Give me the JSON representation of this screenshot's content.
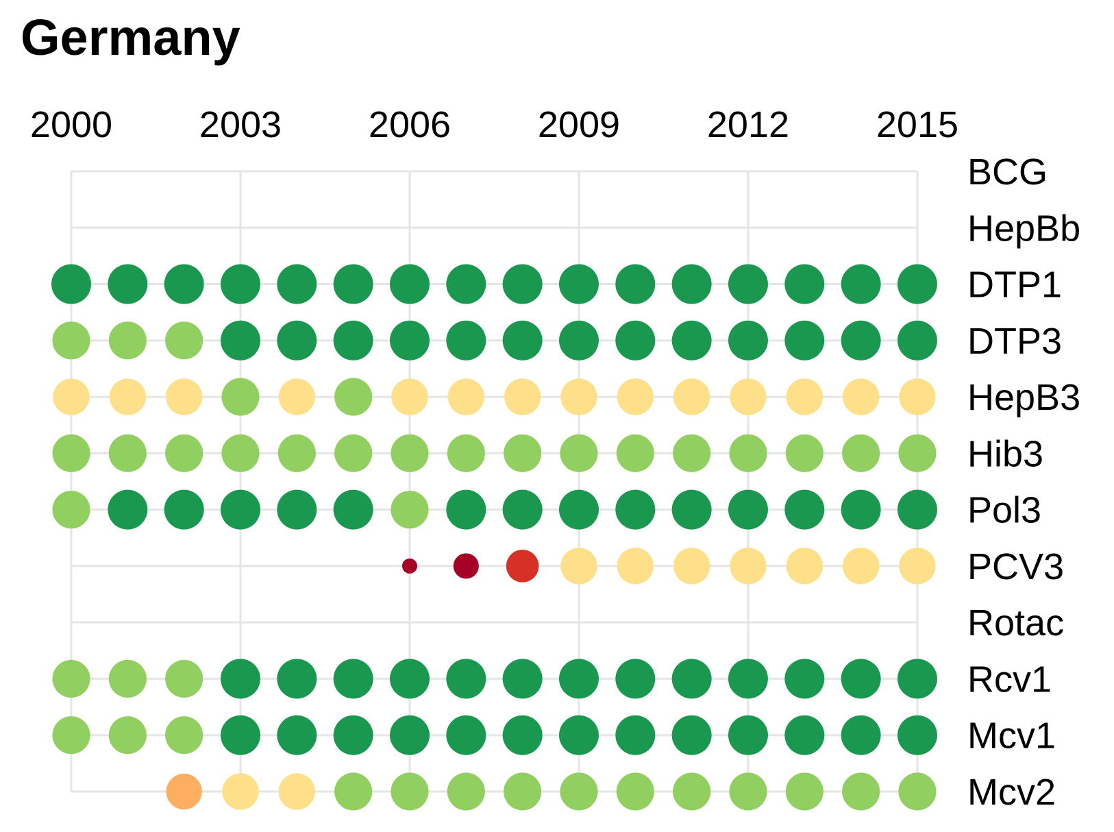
{
  "chart_data": {
    "type": "scatter",
    "title": "Germany",
    "x": [
      2000,
      2001,
      2002,
      2003,
      2004,
      2005,
      2006,
      2007,
      2008,
      2009,
      2010,
      2011,
      2012,
      2013,
      2014,
      2015
    ],
    "x_tick_labels": [
      "2000",
      "2003",
      "2006",
      "2009",
      "2012",
      "2015"
    ],
    "x_tick_values": [
      2000,
      2003,
      2006,
      2009,
      2012,
      2015
    ],
    "rows": [
      "BCG",
      "HepBb",
      "DTP1",
      "DTP3",
      "HepB3",
      "Hib3",
      "Pol3",
      "PCV3",
      "Rotac",
      "Rcv1",
      "Mcv1",
      "Mcv2"
    ],
    "row_label_position": "right",
    "x_label_position": "top",
    "grid": true,
    "colors": {
      "A": "#1a9850",
      "B": "#91cf60",
      "C": "#fee08b",
      "D": "#fdae61",
      "E": "#d73027",
      "F": "#a50026",
      "grid": "#e5e5e5"
    },
    "series": [
      {
        "row": "BCG",
        "points": []
      },
      {
        "row": "HepBb",
        "points": []
      },
      {
        "row": "DTP1",
        "points": [
          {
            "x": 2000,
            "c": "A",
            "s": 1
          },
          {
            "x": 2001,
            "c": "A",
            "s": 1
          },
          {
            "x": 2002,
            "c": "A",
            "s": 1
          },
          {
            "x": 2003,
            "c": "A",
            "s": 1
          },
          {
            "x": 2004,
            "c": "A",
            "s": 1
          },
          {
            "x": 2005,
            "c": "A",
            "s": 1
          },
          {
            "x": 2006,
            "c": "A",
            "s": 1
          },
          {
            "x": 2007,
            "c": "A",
            "s": 1
          },
          {
            "x": 2008,
            "c": "A",
            "s": 1
          },
          {
            "x": 2009,
            "c": "A",
            "s": 1
          },
          {
            "x": 2010,
            "c": "A",
            "s": 1
          },
          {
            "x": 2011,
            "c": "A",
            "s": 1
          },
          {
            "x": 2012,
            "c": "A",
            "s": 1
          },
          {
            "x": 2013,
            "c": "A",
            "s": 1
          },
          {
            "x": 2014,
            "c": "A",
            "s": 1
          },
          {
            "x": 2015,
            "c": "A",
            "s": 1
          }
        ]
      },
      {
        "row": "DTP3",
        "points": [
          {
            "x": 2000,
            "c": "B",
            "s": 0.95
          },
          {
            "x": 2001,
            "c": "B",
            "s": 0.95
          },
          {
            "x": 2002,
            "c": "B",
            "s": 0.95
          },
          {
            "x": 2003,
            "c": "A",
            "s": 1
          },
          {
            "x": 2004,
            "c": "A",
            "s": 1
          },
          {
            "x": 2005,
            "c": "A",
            "s": 1
          },
          {
            "x": 2006,
            "c": "A",
            "s": 1
          },
          {
            "x": 2007,
            "c": "A",
            "s": 1
          },
          {
            "x": 2008,
            "c": "A",
            "s": 1
          },
          {
            "x": 2009,
            "c": "A",
            "s": 1
          },
          {
            "x": 2010,
            "c": "A",
            "s": 1
          },
          {
            "x": 2011,
            "c": "A",
            "s": 1
          },
          {
            "x": 2012,
            "c": "A",
            "s": 1
          },
          {
            "x": 2013,
            "c": "A",
            "s": 1
          },
          {
            "x": 2014,
            "c": "A",
            "s": 1
          },
          {
            "x": 2015,
            "c": "A",
            "s": 1
          }
        ]
      },
      {
        "row": "HepB3",
        "points": [
          {
            "x": 2000,
            "c": "C",
            "s": 0.92
          },
          {
            "x": 2001,
            "c": "C",
            "s": 0.92
          },
          {
            "x": 2002,
            "c": "C",
            "s": 0.92
          },
          {
            "x": 2003,
            "c": "B",
            "s": 0.95
          },
          {
            "x": 2004,
            "c": "C",
            "s": 0.92
          },
          {
            "x": 2005,
            "c": "B",
            "s": 0.95
          },
          {
            "x": 2006,
            "c": "C",
            "s": 0.92
          },
          {
            "x": 2007,
            "c": "C",
            "s": 0.92
          },
          {
            "x": 2008,
            "c": "C",
            "s": 0.92
          },
          {
            "x": 2009,
            "c": "C",
            "s": 0.92
          },
          {
            "x": 2010,
            "c": "C",
            "s": 0.92
          },
          {
            "x": 2011,
            "c": "C",
            "s": 0.92
          },
          {
            "x": 2012,
            "c": "C",
            "s": 0.92
          },
          {
            "x": 2013,
            "c": "C",
            "s": 0.92
          },
          {
            "x": 2014,
            "c": "C",
            "s": 0.92
          },
          {
            "x": 2015,
            "c": "C",
            "s": 0.92
          }
        ]
      },
      {
        "row": "Hib3",
        "points": [
          {
            "x": 2000,
            "c": "B",
            "s": 0.95
          },
          {
            "x": 2001,
            "c": "B",
            "s": 0.95
          },
          {
            "x": 2002,
            "c": "B",
            "s": 0.95
          },
          {
            "x": 2003,
            "c": "B",
            "s": 0.95
          },
          {
            "x": 2004,
            "c": "B",
            "s": 0.95
          },
          {
            "x": 2005,
            "c": "B",
            "s": 0.95
          },
          {
            "x": 2006,
            "c": "B",
            "s": 0.95
          },
          {
            "x": 2007,
            "c": "B",
            "s": 0.95
          },
          {
            "x": 2008,
            "c": "B",
            "s": 0.95
          },
          {
            "x": 2009,
            "c": "B",
            "s": 0.95
          },
          {
            "x": 2010,
            "c": "B",
            "s": 0.95
          },
          {
            "x": 2011,
            "c": "B",
            "s": 0.95
          },
          {
            "x": 2012,
            "c": "B",
            "s": 0.95
          },
          {
            "x": 2013,
            "c": "B",
            "s": 0.95
          },
          {
            "x": 2014,
            "c": "B",
            "s": 0.95
          },
          {
            "x": 2015,
            "c": "B",
            "s": 0.95
          }
        ]
      },
      {
        "row": "Pol3",
        "points": [
          {
            "x": 2000,
            "c": "B",
            "s": 0.95
          },
          {
            "x": 2001,
            "c": "A",
            "s": 1
          },
          {
            "x": 2002,
            "c": "A",
            "s": 1
          },
          {
            "x": 2003,
            "c": "A",
            "s": 1
          },
          {
            "x": 2004,
            "c": "A",
            "s": 1
          },
          {
            "x": 2005,
            "c": "A",
            "s": 1
          },
          {
            "x": 2006,
            "c": "B",
            "s": 0.95
          },
          {
            "x": 2007,
            "c": "A",
            "s": 1
          },
          {
            "x": 2008,
            "c": "A",
            "s": 1
          },
          {
            "x": 2009,
            "c": "A",
            "s": 1
          },
          {
            "x": 2010,
            "c": "A",
            "s": 1
          },
          {
            "x": 2011,
            "c": "A",
            "s": 1
          },
          {
            "x": 2012,
            "c": "A",
            "s": 1
          },
          {
            "x": 2013,
            "c": "A",
            "s": 1
          },
          {
            "x": 2014,
            "c": "A",
            "s": 1
          },
          {
            "x": 2015,
            "c": "A",
            "s": 1
          }
        ]
      },
      {
        "row": "PCV3",
        "points": [
          {
            "x": 2006,
            "c": "F",
            "s": 0.38
          },
          {
            "x": 2007,
            "c": "F",
            "s": 0.64
          },
          {
            "x": 2008,
            "c": "E",
            "s": 0.82
          },
          {
            "x": 2009,
            "c": "C",
            "s": 0.92
          },
          {
            "x": 2010,
            "c": "C",
            "s": 0.92
          },
          {
            "x": 2011,
            "c": "C",
            "s": 0.92
          },
          {
            "x": 2012,
            "c": "C",
            "s": 0.92
          },
          {
            "x": 2013,
            "c": "C",
            "s": 0.92
          },
          {
            "x": 2014,
            "c": "C",
            "s": 0.92
          },
          {
            "x": 2015,
            "c": "C",
            "s": 0.92
          }
        ]
      },
      {
        "row": "Rotac",
        "points": []
      },
      {
        "row": "Rcv1",
        "points": [
          {
            "x": 2000,
            "c": "B",
            "s": 0.95
          },
          {
            "x": 2001,
            "c": "B",
            "s": 0.95
          },
          {
            "x": 2002,
            "c": "B",
            "s": 0.95
          },
          {
            "x": 2003,
            "c": "A",
            "s": 1
          },
          {
            "x": 2004,
            "c": "A",
            "s": 1
          },
          {
            "x": 2005,
            "c": "A",
            "s": 1
          },
          {
            "x": 2006,
            "c": "A",
            "s": 1
          },
          {
            "x": 2007,
            "c": "A",
            "s": 1
          },
          {
            "x": 2008,
            "c": "A",
            "s": 1
          },
          {
            "x": 2009,
            "c": "A",
            "s": 1
          },
          {
            "x": 2010,
            "c": "A",
            "s": 1
          },
          {
            "x": 2011,
            "c": "A",
            "s": 1
          },
          {
            "x": 2012,
            "c": "A",
            "s": 1
          },
          {
            "x": 2013,
            "c": "A",
            "s": 1
          },
          {
            "x": 2014,
            "c": "A",
            "s": 1
          },
          {
            "x": 2015,
            "c": "A",
            "s": 1
          }
        ]
      },
      {
        "row": "Mcv1",
        "points": [
          {
            "x": 2000,
            "c": "B",
            "s": 0.95
          },
          {
            "x": 2001,
            "c": "B",
            "s": 0.95
          },
          {
            "x": 2002,
            "c": "B",
            "s": 0.95
          },
          {
            "x": 2003,
            "c": "A",
            "s": 1
          },
          {
            "x": 2004,
            "c": "A",
            "s": 1
          },
          {
            "x": 2005,
            "c": "A",
            "s": 1
          },
          {
            "x": 2006,
            "c": "A",
            "s": 1
          },
          {
            "x": 2007,
            "c": "A",
            "s": 1
          },
          {
            "x": 2008,
            "c": "A",
            "s": 1
          },
          {
            "x": 2009,
            "c": "A",
            "s": 1
          },
          {
            "x": 2010,
            "c": "A",
            "s": 1
          },
          {
            "x": 2011,
            "c": "A",
            "s": 1
          },
          {
            "x": 2012,
            "c": "A",
            "s": 1
          },
          {
            "x": 2013,
            "c": "A",
            "s": 1
          },
          {
            "x": 2014,
            "c": "A",
            "s": 1
          },
          {
            "x": 2015,
            "c": "A",
            "s": 1
          }
        ]
      },
      {
        "row": "Mcv2",
        "points": [
          {
            "x": 2002,
            "c": "D",
            "s": 0.9
          },
          {
            "x": 2003,
            "c": "C",
            "s": 0.92
          },
          {
            "x": 2004,
            "c": "C",
            "s": 0.92
          },
          {
            "x": 2005,
            "c": "B",
            "s": 0.95
          },
          {
            "x": 2006,
            "c": "B",
            "s": 0.95
          },
          {
            "x": 2007,
            "c": "B",
            "s": 0.95
          },
          {
            "x": 2008,
            "c": "B",
            "s": 0.95
          },
          {
            "x": 2009,
            "c": "B",
            "s": 0.95
          },
          {
            "x": 2010,
            "c": "B",
            "s": 0.95
          },
          {
            "x": 2011,
            "c": "B",
            "s": 0.95
          },
          {
            "x": 2012,
            "c": "B",
            "s": 0.95
          },
          {
            "x": 2013,
            "c": "B",
            "s": 0.95
          },
          {
            "x": 2014,
            "c": "B",
            "s": 0.95
          },
          {
            "x": 2015,
            "c": "B",
            "s": 0.95
          }
        ]
      }
    ]
  }
}
